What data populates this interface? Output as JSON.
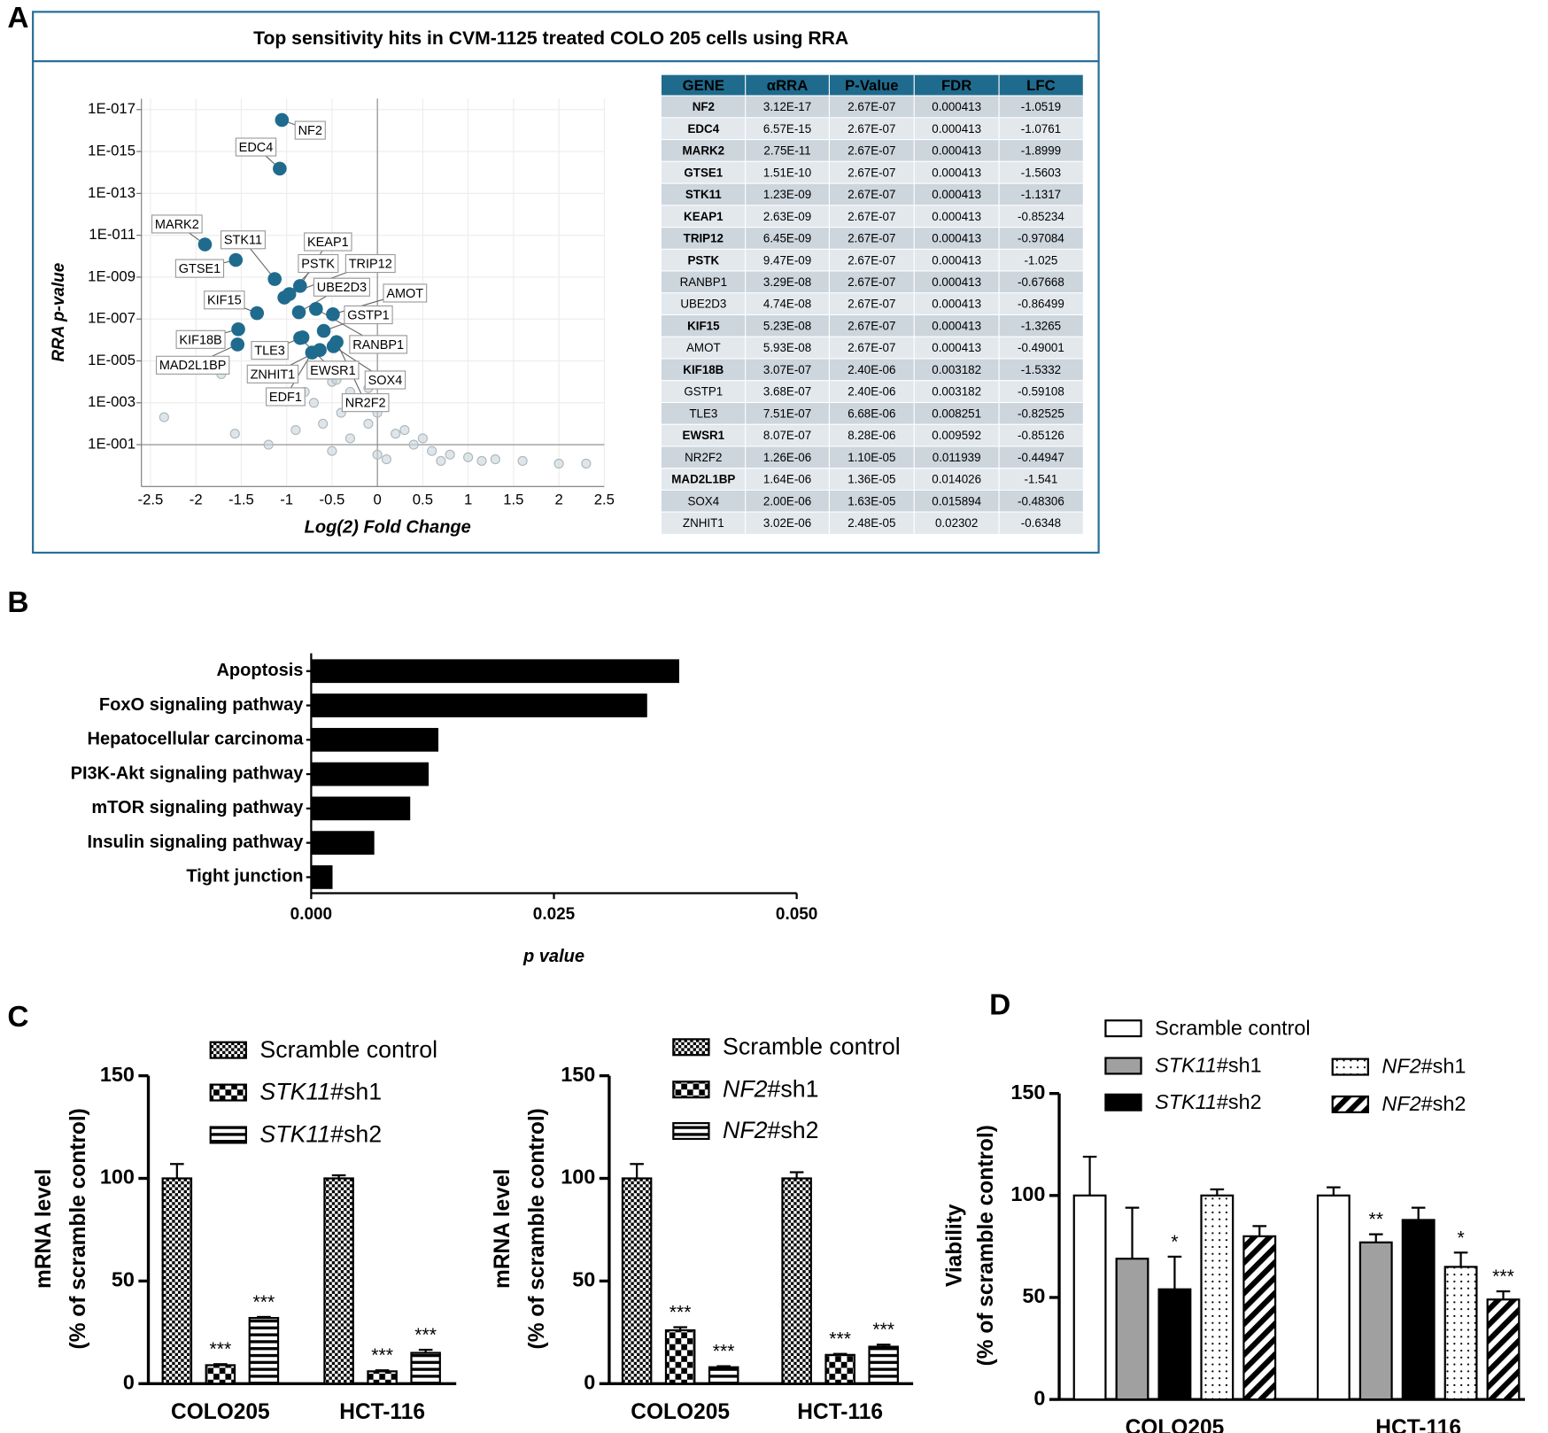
{
  "panel_labels": [
    "A",
    "B",
    "C",
    "D"
  ],
  "table": {
    "columns": [
      "GENE",
      "αRRA",
      "P-Value",
      "FDR",
      "LFC"
    ],
    "header_color": "#1f6b8e",
    "highlight_color": "#8a6d1e",
    "highlighted_rows": [
      0,
      1,
      2,
      3,
      4,
      5,
      6,
      7,
      10,
      12,
      15,
      17
    ],
    "rows": [
      [
        "NF2",
        "3.12E-17",
        "2.67E-07",
        "0.000413",
        "-1.0519"
      ],
      [
        "EDC4",
        "6.57E-15",
        "2.67E-07",
        "0.000413",
        "-1.0761"
      ],
      [
        "MARK2",
        "2.75E-11",
        "2.67E-07",
        "0.000413",
        "-1.8999"
      ],
      [
        "GTSE1",
        "1.51E-10",
        "2.67E-07",
        "0.000413",
        "-1.5603"
      ],
      [
        "STK11",
        "1.23E-09",
        "2.67E-07",
        "0.000413",
        "-1.1317"
      ],
      [
        "KEAP1",
        "2.63E-09",
        "2.67E-07",
        "0.000413",
        "-0.85234"
      ],
      [
        "TRIP12",
        "6.45E-09",
        "2.67E-07",
        "0.000413",
        "-0.97084"
      ],
      [
        "PSTK",
        "9.47E-09",
        "2.67E-07",
        "0.000413",
        "-1.025"
      ],
      [
        "RANBP1",
        "3.29E-08",
        "2.67E-07",
        "0.000413",
        "-0.67668"
      ],
      [
        "UBE2D3",
        "4.74E-08",
        "2.67E-07",
        "0.000413",
        "-0.86499"
      ],
      [
        "KIF15",
        "5.23E-08",
        "2.67E-07",
        "0.000413",
        "-1.3265"
      ],
      [
        "AMOT",
        "5.93E-08",
        "2.67E-07",
        "0.000413",
        "-0.49001"
      ],
      [
        "KIF18B",
        "3.07E-07",
        "2.40E-06",
        "0.003182",
        "-1.5332"
      ],
      [
        "GSTP1",
        "3.68E-07",
        "2.40E-06",
        "0.003182",
        "-0.59108"
      ],
      [
        "TLE3",
        "7.51E-07",
        "6.68E-06",
        "0.008251",
        "-0.82525"
      ],
      [
        "EWSR1",
        "8.07E-07",
        "8.28E-06",
        "0.009592",
        "-0.85126"
      ],
      [
        "NR2F2",
        "1.26E-06",
        "1.10E-05",
        "0.011939",
        "-0.44947"
      ],
      [
        "MAD2L1BP",
        "1.64E-06",
        "1.36E-05",
        "0.014026",
        "-1.541"
      ],
      [
        "SOX4",
        "2.00E-06",
        "1.63E-05",
        "0.015894",
        "-0.48306"
      ],
      [
        "ZNHIT1",
        "3.02E-06",
        "2.48E-05",
        "0.02302",
        "-0.6348"
      ]
    ]
  },
  "chart_data": [
    {
      "type": "scatter",
      "title": "Top sensitivity hits in CVM-1125 treated COLO 205 cells using RRA",
      "x_label": "Log(2) Fold Change",
      "y_label": "RRA p-value",
      "yscale": "log",
      "grid": true,
      "xlim": [
        -2.6,
        2.5
      ],
      "xticks": [
        -2.5,
        -2,
        -1.5,
        -1,
        -0.5,
        0,
        0.5,
        1,
        1.5,
        2,
        2.5
      ],
      "ylim": [
        10,
        3e-18
      ],
      "yticks": [
        {
          "value": 1e-17,
          "label": "1E-017"
        },
        {
          "value": 1e-15,
          "label": "1E-015"
        },
        {
          "value": 1e-13,
          "label": "1E-013"
        },
        {
          "value": 1e-11,
          "label": "1E-011"
        },
        {
          "value": 1e-09,
          "label": "1E-009"
        },
        {
          "value": 1e-07,
          "label": "1E-007"
        },
        {
          "value": 1e-05,
          "label": "1E-005"
        },
        {
          "value": 0.001,
          "label": "1E-003"
        },
        {
          "value": 0.1,
          "label": "1E-001"
        }
      ],
      "vline": 0,
      "hline": 0.1,
      "series": [
        {
          "color": "#c9d4d8",
          "x": [
            -2.35,
            -1.72,
            -1.57,
            -0.5,
            -0.3,
            -0.2,
            0,
            -0.1,
            0.2,
            0.4,
            0.6,
            0.8,
            1.0,
            -0.4,
            -0.7,
            -0.8,
            0.1,
            0.3,
            -0.6,
            -0.3,
            0.5,
            -0.9,
            1.3,
            1.6,
            2.0,
            2.3,
            -1.2,
            -0.5,
            0.0,
            0.7,
            1.15,
            -0.1,
            -0.45
          ],
          "values": [
            0.0049,
            4.3e-05,
            0.03,
            0.0001,
            0.0003,
            0.001,
            0.003,
            0.01,
            0.03,
            0.1,
            0.2,
            0.3,
            0.4,
            0.003,
            0.001,
            0.0003,
            0.5,
            0.02,
            0.01,
            0.05,
            0.05,
            0.02,
            0.5,
            0.6,
            0.8,
            0.8,
            0.1,
            0.2,
            0.3,
            0.6,
            0.6,
            0.0002,
            8e-05
          ]
        },
        {
          "color": "#1f6b8e",
          "labels": [
            "NF2",
            "EDC4",
            "MARK2",
            "GTSE1",
            "STK11",
            "KEAP1",
            "TRIP12",
            "PSTK",
            "RANBP1",
            "UBE2D3",
            "KIF15",
            "AMOT",
            "KIF18B",
            "GSTP1",
            "TLE3",
            "EWSR1",
            "NR2F2",
            "MAD2L1BP",
            "SOX4",
            "ZNHIT1",
            "EDF1"
          ],
          "x": [
            -1.0519,
            -1.0761,
            -1.8999,
            -1.5603,
            -1.1317,
            -0.85234,
            -0.97084,
            -1.025,
            -0.67668,
            -0.86499,
            -1.3265,
            -0.49001,
            -1.5332,
            -0.59108,
            -0.82525,
            -0.85126,
            -0.44947,
            -1.541,
            -0.48306,
            -0.6348,
            -0.72
          ],
          "values": [
            3.12e-17,
            6.57e-15,
            2.75e-11,
            1.51e-10,
            1.23e-09,
            2.63e-09,
            6.45e-09,
            9.47e-09,
            3.29e-08,
            4.74e-08,
            5.23e-08,
            5.93e-08,
            3.07e-07,
            3.68e-07,
            7.51e-07,
            8.07e-07,
            1.26e-06,
            1.64e-06,
            2e-06,
            3.02e-06,
            4e-06
          ]
        }
      ]
    },
    {
      "type": "hbar",
      "x_label": "p value",
      "color": "#000000",
      "categories": [
        "Apoptosis",
        "FoxO signaling pathway",
        "Hepatocellular carcinoma",
        "PI3K-Akt signaling pathway",
        "mTOR signaling pathway",
        "Insulin signaling pathway",
        "Tight junction"
      ],
      "values": [
        0.0379,
        0.0346,
        0.0131,
        0.0121,
        0.0102,
        0.0065,
        0.0022
      ],
      "xlim": [
        0,
        0.05
      ],
      "xticks": [
        {
          "value": 0,
          "label": "0.000"
        },
        {
          "value": 0.025,
          "label": "0.025"
        },
        {
          "value": 0.05,
          "label": "0.050"
        }
      ]
    },
    {
      "type": "bar",
      "y_label": [
        "mRNA level",
        "(% of scramble control)"
      ],
      "categories": [
        "COLO205",
        "HCT-116"
      ],
      "ylim": [
        0,
        150
      ],
      "yticks": [
        0,
        50,
        100,
        150
      ],
      "series": [
        {
          "name": "Scramble control",
          "color": "#000000",
          "pattern": "checker-fine",
          "values": [
            100,
            100
          ],
          "errors": [
            7,
            1.5
          ]
        },
        {
          "name": "STK11#sh1",
          "color": "#000000",
          "pattern": "checker",
          "values": [
            9,
            6
          ],
          "errors": [
            0.5,
            0.5
          ],
          "stars": [
            "***",
            "***"
          ]
        },
        {
          "name": "STK11#sh2",
          "color": "#000000",
          "pattern": "hstripe",
          "values": [
            32,
            15
          ],
          "errors": [
            0.5,
            1.5
          ],
          "stars": [
            "***",
            "***"
          ]
        }
      ]
    },
    {
      "type": "bar",
      "y_label": [
        "mRNA level",
        "(% of scramble control)"
      ],
      "categories": [
        "COLO205",
        "HCT-116"
      ],
      "ylim": [
        0,
        150
      ],
      "yticks": [
        0,
        50,
        100,
        150
      ],
      "series": [
        {
          "name": "Scramble control",
          "color": "#000000",
          "pattern": "checker-fine",
          "values": [
            100,
            100
          ],
          "errors": [
            7,
            3
          ]
        },
        {
          "name": "NF2#sh1",
          "color": "#000000",
          "pattern": "checker",
          "values": [
            26,
            14
          ],
          "errors": [
            1.5,
            0.5
          ],
          "stars": [
            "***",
            "***"
          ]
        },
        {
          "name": "NF2#sh2",
          "color": "#000000",
          "pattern": "hstripe",
          "values": [
            8,
            18
          ],
          "errors": [
            0.5,
            1
          ],
          "stars": [
            "***",
            "***"
          ]
        }
      ]
    },
    {
      "type": "bar",
      "y_label": [
        "Viability",
        "(% of scramble control)"
      ],
      "categories": [
        "COLO205",
        "HCT-116"
      ],
      "ylim": [
        0,
        150
      ],
      "yticks": [
        0,
        50,
        100,
        150
      ],
      "series": [
        {
          "name": "Scramble control",
          "color": "#ffffff",
          "values": [
            100,
            100
          ],
          "errors": [
            19,
            4
          ]
        },
        {
          "name": "STK11#sh1",
          "color": "#a0a0a0",
          "values": [
            69,
            77
          ],
          "errors": [
            25,
            4
          ],
          "stars": [
            null,
            "**"
          ]
        },
        {
          "name": "STK11#sh2",
          "color": "#000000",
          "values": [
            54,
            88
          ],
          "errors": [
            16,
            6
          ],
          "stars": [
            "*",
            null
          ]
        },
        {
          "name": "NF2#sh1",
          "color": "#000000",
          "pattern": "dots",
          "values": [
            100,
            65
          ],
          "errors": [
            3,
            7
          ],
          "stars": [
            null,
            "*"
          ]
        },
        {
          "name": "NF2#sh2",
          "color": "#000000",
          "pattern": "diagonal",
          "values": [
            80,
            49
          ],
          "errors": [
            5,
            4
          ],
          "stars": [
            null,
            "***"
          ]
        }
      ]
    }
  ]
}
